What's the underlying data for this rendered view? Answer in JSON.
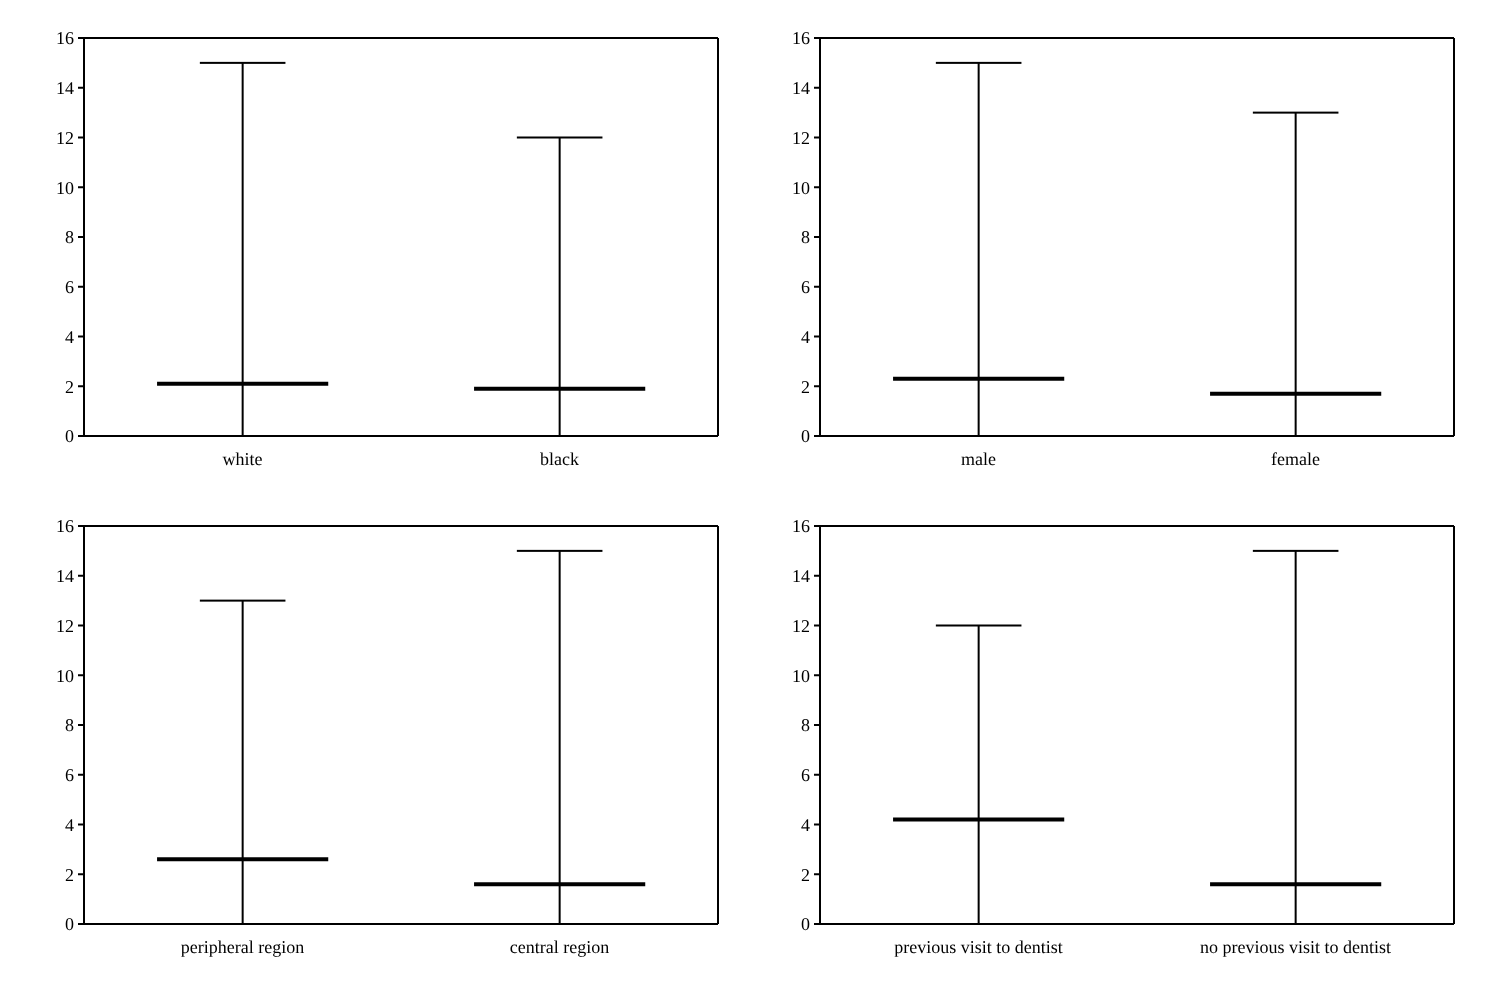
{
  "chart_data": [
    {
      "type": "box",
      "categories": [
        "white",
        "black"
      ],
      "boxes": [
        {
          "low": 0,
          "q1": 2.1,
          "median": 2.1,
          "q3": 2.1,
          "high": 15
        },
        {
          "low": 0,
          "q1": 1.9,
          "median": 1.9,
          "q3": 1.9,
          "high": 12
        }
      ],
      "ylim": [
        0,
        16
      ],
      "yticks": [
        0,
        2,
        4,
        6,
        8,
        10,
        12,
        14,
        16
      ],
      "grid": false,
      "legend": false
    },
    {
      "type": "box",
      "categories": [
        "male",
        "female"
      ],
      "boxes": [
        {
          "low": 0,
          "q1": 2.3,
          "median": 2.3,
          "q3": 2.3,
          "high": 15
        },
        {
          "low": 0,
          "q1": 1.7,
          "median": 1.7,
          "q3": 1.7,
          "high": 13
        }
      ],
      "ylim": [
        0,
        16
      ],
      "yticks": [
        0,
        2,
        4,
        6,
        8,
        10,
        12,
        14,
        16
      ],
      "grid": false,
      "legend": false
    },
    {
      "type": "box",
      "categories": [
        "peripheral region",
        "central region"
      ],
      "boxes": [
        {
          "low": 0,
          "q1": 2.6,
          "median": 2.6,
          "q3": 2.6,
          "high": 13
        },
        {
          "low": 0,
          "q1": 1.6,
          "median": 1.6,
          "q3": 1.6,
          "high": 15
        }
      ],
      "ylim": [
        0,
        16
      ],
      "yticks": [
        0,
        2,
        4,
        6,
        8,
        10,
        12,
        14,
        16
      ],
      "grid": false,
      "legend": false
    },
    {
      "type": "box",
      "categories": [
        "previous visit to dentist",
        "no previous visit to dentist"
      ],
      "boxes": [
        {
          "low": 0,
          "q1": 4.2,
          "median": 4.2,
          "q3": 4.2,
          "high": 12
        },
        {
          "low": 0,
          "q1": 1.6,
          "median": 1.6,
          "q3": 1.6,
          "high": 15
        }
      ],
      "ylim": [
        0,
        16
      ],
      "yticks": [
        0,
        2,
        4,
        6,
        8,
        10,
        12,
        14,
        16
      ],
      "grid": false,
      "legend": false
    }
  ]
}
